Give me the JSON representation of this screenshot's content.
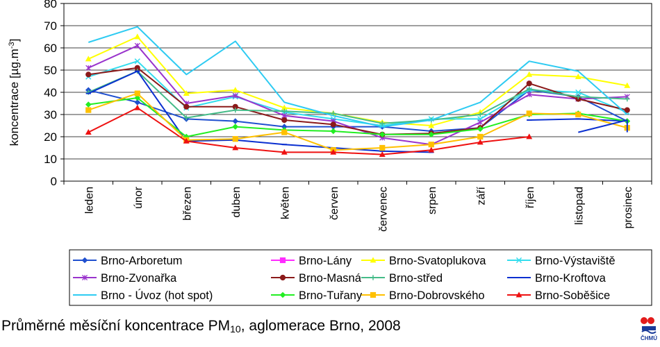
{
  "colors": {
    "Brno-Arboretum": "#1f4fcf",
    "Brno-Lány": "#ff2bff",
    "Brno-Svatoplukova": "#ffff00",
    "Brno-Výstaviště": "#33ddee",
    "Brno-Zvonařka": "#9933cc",
    "Brno-Masná": "#8b1a1a",
    "Brno-střed": "#44bb88",
    "Brno-Kroftova": "#0a2fd0",
    "Brno - Úvoz (hot spot)": "#2ecbf2",
    "Brno-Tuřany": "#22ee22",
    "Brno-Dobrovského": "#ffc000",
    "Brno-Soběšice": "#ee1111"
  },
  "chart_data": {
    "type": "line",
    "ylabel_main": "koncentrace [µg.m",
    "ylabel_sup": "-3",
    "ylabel_end": "]",
    "ylim": [
      0,
      80
    ],
    "yticks": [
      "0",
      "10",
      "20",
      "30",
      "40",
      "50",
      "60",
      "70",
      "80"
    ],
    "categories": [
      "leden",
      "únor",
      "březen",
      "duben",
      "květen",
      "červen",
      "červenec",
      "srpen",
      "září",
      "říjen",
      "listopad",
      "prosinec"
    ],
    "grid": "horizontal",
    "legend_position": "bottom",
    "series": [
      {
        "name": "Brno-Arboretum",
        "marker": "diamond",
        "values": [
          41,
          35.5,
          28,
          27,
          24.5,
          24.5,
          24.5,
          22.5,
          24,
          41,
          38,
          27
        ]
      },
      {
        "name": "Brno-Lány",
        "marker": "square",
        "values": [
          null,
          null,
          null,
          null,
          null,
          null,
          null,
          null,
          null,
          null,
          null,
          null
        ]
      },
      {
        "name": "Brno-Svatoplukova",
        "marker": "triangle",
        "values": [
          55,
          65,
          39.5,
          41,
          33,
          30.5,
          26.5,
          25,
          31,
          48,
          47,
          43
        ]
      },
      {
        "name": "Brno-Výstaviště",
        "marker": "x",
        "values": [
          47,
          54,
          33,
          38,
          31,
          28,
          25,
          28,
          28,
          41,
          40,
          31
        ]
      },
      {
        "name": "Brno-Zvonařka",
        "marker": "star",
        "values": [
          51,
          61,
          35,
          38.5,
          29.5,
          27,
          19.5,
          16.5,
          26.5,
          39,
          37,
          38
        ]
      },
      {
        "name": "Brno-Masná",
        "marker": "circle",
        "values": [
          48,
          51,
          33.5,
          33.5,
          27.5,
          25.5,
          21,
          21.5,
          24,
          44,
          37,
          32
        ]
      },
      {
        "name": "Brno-střed",
        "marker": "plus",
        "values": [
          40,
          49.5,
          28.5,
          32,
          31.5,
          30.5,
          26,
          27.5,
          30,
          41.5,
          38,
          37
        ]
      },
      {
        "name": "Brno-Kroftova",
        "marker": "dash",
        "values": [
          39.5,
          49.5,
          18,
          18.5,
          16.5,
          15,
          13.5,
          13,
          null,
          27.5,
          28,
          27
        ]
      },
      {
        "name": "Brno - Úvoz (hot spot)",
        "marker": "none",
        "values": [
          62.5,
          69.5,
          48,
          63,
          35.5,
          29.5,
          24.5,
          27.5,
          35.5,
          54,
          49.5,
          30
        ]
      },
      {
        "name": "Brno-Tuřany",
        "marker": "diamond",
        "values": [
          34.5,
          37.5,
          20,
          24.5,
          23,
          22.5,
          21,
          21,
          23.5,
          30,
          30.5,
          27
        ]
      },
      {
        "name": "Brno-Dobrovského",
        "marker": "square",
        "values": [
          32,
          39.5,
          18.5,
          19,
          22,
          14,
          15,
          16.5,
          20,
          30.5,
          30,
          24
        ]
      },
      {
        "name": "Brno-Soběšice",
        "marker": "triangle",
        "values": [
          22,
          33,
          18,
          15,
          13,
          13,
          12,
          14,
          17.5,
          20,
          null,
          null
        ]
      }
    ],
    "extra_segments": [
      {
        "series": "Brno-Kroftova",
        "points": [
          [
            10,
            22
          ],
          [
            11,
            27.5
          ]
        ]
      },
      {
        "series": "Brno-Kroftova",
        "points": [
          [
            11,
            27.5
          ],
          [
            11,
            22
          ]
        ]
      }
    ]
  },
  "caption": {
    "prefix": "Průměrné měsíční koncentrace PM",
    "sub": "10",
    "suffix": ", aglomerace Brno, 2008"
  },
  "logo": {
    "text": "ČHMÚ"
  }
}
